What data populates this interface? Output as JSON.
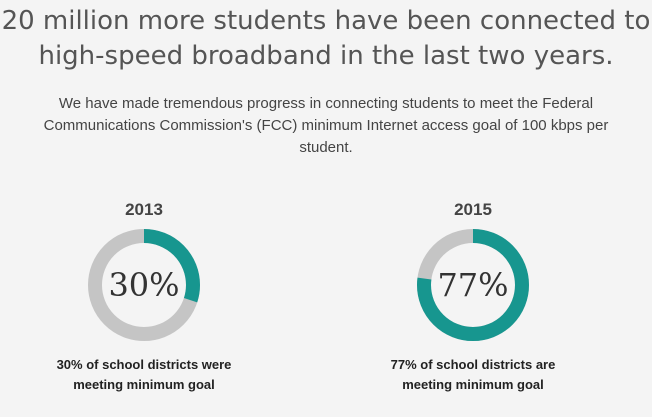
{
  "headline": "20 million more students have been connected to high-speed broadband in the last two years.",
  "intro": "We have made tremendous progress in connecting students to meet the Federal Communications Commission's (FCC) minimum Internet access goal of 100 kbps per student.",
  "colors": {
    "accent": "#17968f",
    "track": "#c5c5c5",
    "background": "#f4f4f4"
  },
  "chart_data": [
    {
      "type": "pie",
      "title": "2013",
      "value_percent": 30,
      "label": "30%",
      "caption_line1": "30% of school districts were",
      "caption_line2": "meeting minimum goal"
    },
    {
      "type": "pie",
      "title": "2015",
      "value_percent": 77,
      "label": "77%",
      "caption_line1": "77% of school districts are",
      "caption_line2": "meeting minimum goal"
    }
  ]
}
